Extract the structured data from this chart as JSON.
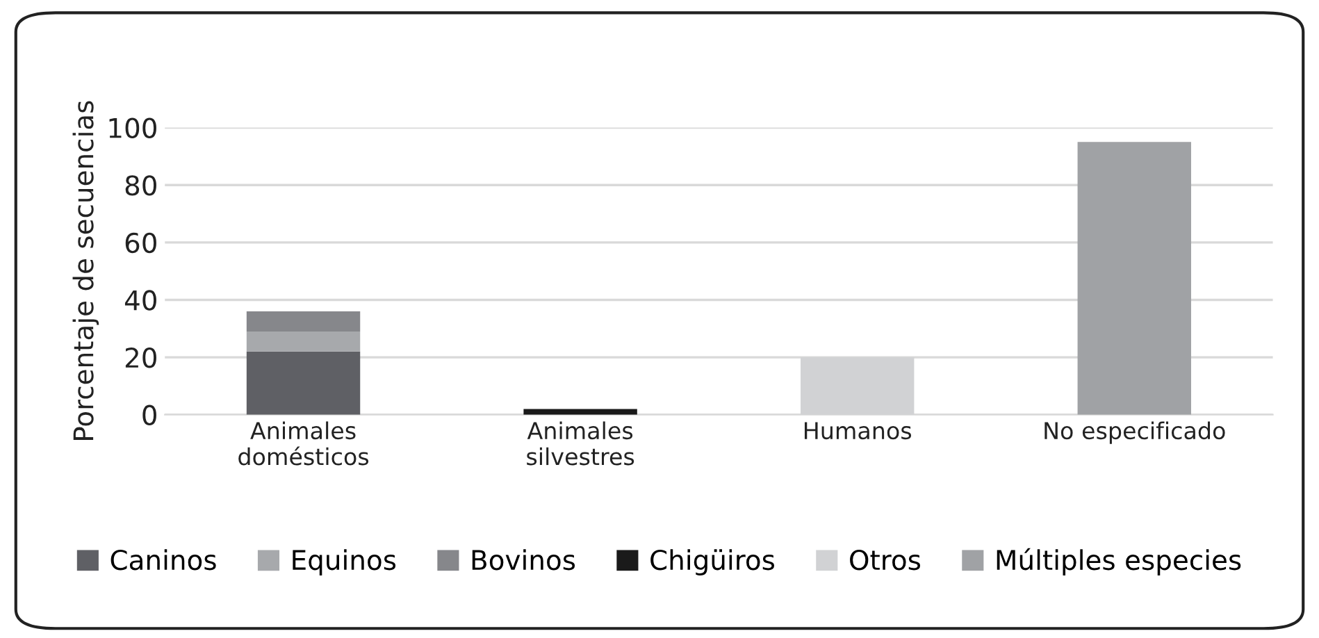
{
  "chart_data": {
    "type": "bar",
    "stacked": true,
    "ylabel": "Porcentaje de secuencias",
    "categories": [
      "Animales\ndomésticos",
      "Animales\nsilvestres",
      "Humanos",
      "No especificado"
    ],
    "series": [
      {
        "name": "Caninos",
        "color": "#5f6065",
        "values": [
          22,
          null,
          null,
          null
        ]
      },
      {
        "name": "Equinos",
        "color": "#a7a9ac",
        "values": [
          7,
          null,
          null,
          null
        ]
      },
      {
        "name": "Bovinos",
        "color": "#86878b",
        "values": [
          7,
          null,
          null,
          null
        ]
      },
      {
        "name": "Chigüiros",
        "color": "#1a1a1a",
        "values": [
          null,
          2,
          null,
          null
        ]
      },
      {
        "name": "Otros",
        "color": "#d1d2d4",
        "values": [
          null,
          null,
          20,
          null
        ]
      },
      {
        "name": "Múltiples especies",
        "color": "#a0a2a5",
        "values": [
          null,
          null,
          null,
          95
        ]
      }
    ],
    "ylim": [
      0,
      100
    ],
    "yticks": [
      0,
      20,
      40,
      60,
      80,
      100
    ],
    "grid": "y",
    "legend": "bottom"
  }
}
